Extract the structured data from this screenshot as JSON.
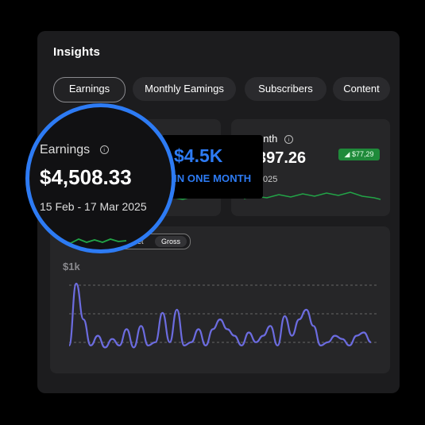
{
  "panel": {
    "title": "Insights"
  },
  "tabs": [
    {
      "label": "Earnings",
      "active": true
    },
    {
      "label": "Monthly Eamings",
      "active": false
    },
    {
      "label": "Subscribers",
      "active": false
    },
    {
      "label": "Content",
      "active": false
    }
  ],
  "card_right": {
    "title_partial": "onth",
    "value_partial": "397.26",
    "sub_partial": "025",
    "badge": "$77,29"
  },
  "popup": {
    "value": "$4.5K",
    "caption": "IN ONE MONTH"
  },
  "chart": {
    "ylabel": "$1k",
    "toggle": [
      "Net",
      "Gross"
    ],
    "toggle_partial": "let"
  },
  "magnifier": {
    "label": "Earnings",
    "value": "$4,508.33",
    "range": "15 Feb - 17 Mar 2025"
  },
  "colors": {
    "accent_blue": "#2d7bf4",
    "line_purple": "#6c6ce0",
    "spark_green": "#22a447",
    "badge_green": "#1f8a3a"
  },
  "chart_data": {
    "type": "line",
    "ylabel": "$1k",
    "y": [
      0.05,
      1.0,
      0.45,
      0.05,
      0.2,
      0.02,
      0.15,
      0.05,
      0.3,
      0.02,
      0.35,
      0.05,
      0.1,
      0.55,
      0.1,
      0.6,
      0.05,
      0.1,
      0.3,
      0.05,
      0.3,
      0.45,
      0.3,
      0.2,
      0.05,
      0.25,
      0.1,
      0.2,
      0.35,
      0.05,
      0.5,
      0.2,
      0.45,
      0.6,
      0.35,
      0.05,
      0.1,
      0.2,
      0.15,
      0.05,
      0.2,
      0.25,
      0.1
    ]
  }
}
